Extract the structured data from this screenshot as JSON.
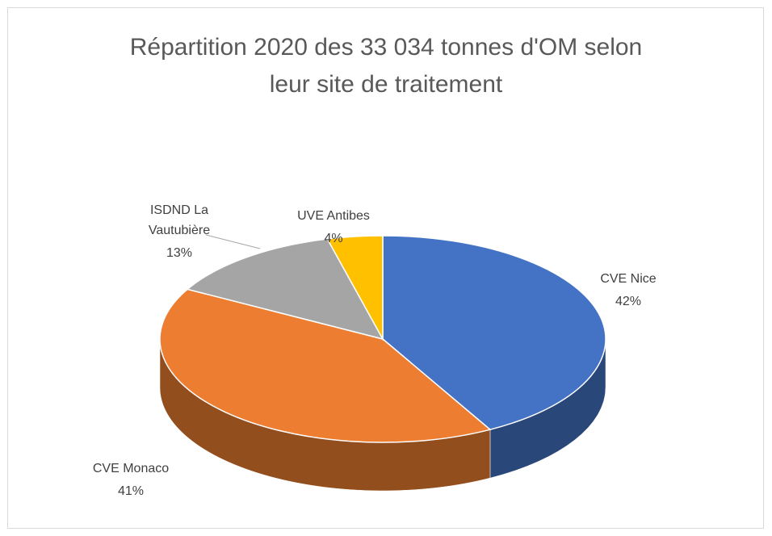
{
  "chart_data": {
    "type": "pie",
    "title": "Répartition 2020 des 33 034 tonnes d'OM selon leur site de traitement",
    "categories": [
      "CVE Nice",
      "CVE Monaco",
      "ISDND La Vautubière",
      "UVE Antibes"
    ],
    "values": [
      42,
      41,
      13,
      4
    ],
    "value_labels": [
      "42%",
      "41%",
      "13%",
      "4%"
    ],
    "colors": [
      "#4472c4",
      "#ed7d31",
      "#a5a5a5",
      "#ffc000"
    ]
  }
}
